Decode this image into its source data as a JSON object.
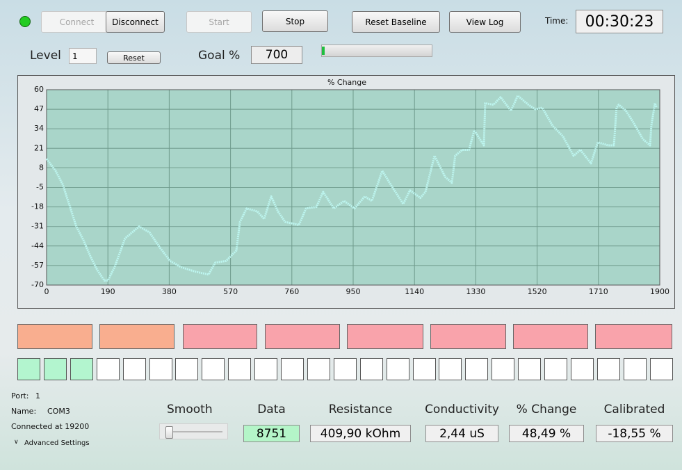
{
  "toolbar": {
    "buttons": [
      "Connect",
      "Disconnect",
      "Start",
      "Stop",
      "Reset Baseline",
      "View Log"
    ],
    "time_label": "Time:",
    "time": "00:30:23"
  },
  "level": {
    "label": "Level",
    "value": "1",
    "reset": "Reset"
  },
  "goal": {
    "label": "Goal %",
    "value": "700"
  },
  "chart_data": {
    "type": "line",
    "title": "% Change",
    "color": "#bdf5ef",
    "grid": true,
    "x": [
      0,
      28,
      50,
      71,
      92,
      114,
      136,
      157,
      179,
      190,
      211,
      243,
      265,
      287,
      319,
      351,
      383,
      416,
      459,
      502,
      523,
      556,
      588,
      599,
      620,
      653,
      674,
      696,
      717,
      739,
      782,
      804,
      836,
      857,
      890,
      922,
      954,
      986,
      1008,
      1040,
      1072,
      1105,
      1126,
      1158,
      1174,
      1202,
      1235,
      1256,
      1266,
      1288,
      1309,
      1325,
      1355,
      1359,
      1385,
      1407,
      1439,
      1460,
      1493,
      1514,
      1536,
      1568,
      1600,
      1633,
      1654,
      1687,
      1708,
      1740,
      1758,
      1766,
      1773,
      1795,
      1816,
      1848,
      1870,
      1874,
      1885,
      1891
    ],
    "values": [
      14,
      6,
      -3,
      -17,
      -31,
      -40,
      -51,
      -60,
      -67,
      -67,
      -58,
      -39,
      -35,
      -31,
      -35,
      -45,
      -54,
      -58,
      -61,
      -63,
      -55,
      -54,
      -47,
      -28,
      -19,
      -21,
      -26,
      -11,
      -21,
      -28,
      -30,
      -19,
      -18,
      -8,
      -19,
      -14,
      -19,
      -11,
      -14,
      6,
      -5,
      -16,
      -7,
      -12,
      -8,
      16,
      2,
      -2,
      16,
      20,
      20,
      33,
      23,
      51,
      50,
      55,
      46,
      56,
      50,
      47,
      48,
      36,
      29,
      16,
      20,
      11,
      25,
      23,
      23,
      48,
      50,
      46,
      39,
      27,
      23,
      36,
      51,
      48
    ],
    "xlim": [
      0,
      1900
    ],
    "xticks": [
      0,
      190,
      380,
      570,
      760,
      950,
      1140,
      1330,
      1520,
      1710,
      1900
    ],
    "ylim": [
      -70,
      60
    ],
    "yticks": [
      60,
      47,
      34,
      21,
      8,
      -5,
      -18,
      -31,
      -44,
      -57,
      -70
    ]
  },
  "status": {
    "port_label": "Port:",
    "port": "1",
    "name_label": "Name:",
    "name": "COM3",
    "connection": "Connected at 19200",
    "advanced": "Advanced Settings"
  },
  "smooth": {
    "label": "Smooth"
  },
  "readouts": [
    {
      "label": "Data",
      "value": "8751"
    },
    {
      "label": "Resistance",
      "value": "409,90 kOhm"
    },
    {
      "label": "Conductivity",
      "value": "2,44 uS"
    },
    {
      "label": "% Change",
      "value": "48,49 %"
    },
    {
      "label": "Calibrated",
      "value": "-18,55 %"
    }
  ]
}
